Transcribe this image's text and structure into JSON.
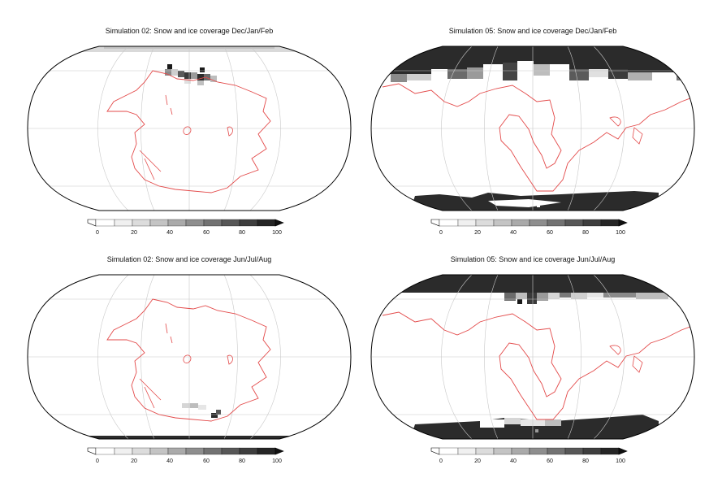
{
  "figure": {
    "panels": [
      {
        "id": "sim02-djf",
        "title": "Simulation 02: Snow and ice coverage Dec/Jan/Feb",
        "colorbar": {
          "ticks": [
            "0",
            "20",
            "40",
            "60",
            "80",
            "100"
          ]
        }
      },
      {
        "id": "sim05-djf",
        "title": "Simulation 05: Snow and ice coverage Dec/Jan/Feb",
        "colorbar": {
          "ticks": [
            "0",
            "20",
            "40",
            "60",
            "80",
            "100"
          ]
        }
      },
      {
        "id": "sim02-jja",
        "title": "Simulation 02: Snow and ice coverage Jun/Jul/Aug",
        "colorbar": {
          "ticks": [
            "0",
            "20",
            "40",
            "60",
            "80",
            "100"
          ]
        }
      },
      {
        "id": "sim05-jja",
        "title": "Simulation 05: Snow and ice coverage Jun/Jul/Aug",
        "colorbar": {
          "ticks": [
            "0",
            "20",
            "40",
            "60",
            "80",
            "100"
          ]
        }
      }
    ],
    "colors": {
      "coastline": "#e34a4a",
      "graticule": "#c8c8c8",
      "ice_full": "#2b2b2b",
      "map_border": "#000000"
    }
  }
}
